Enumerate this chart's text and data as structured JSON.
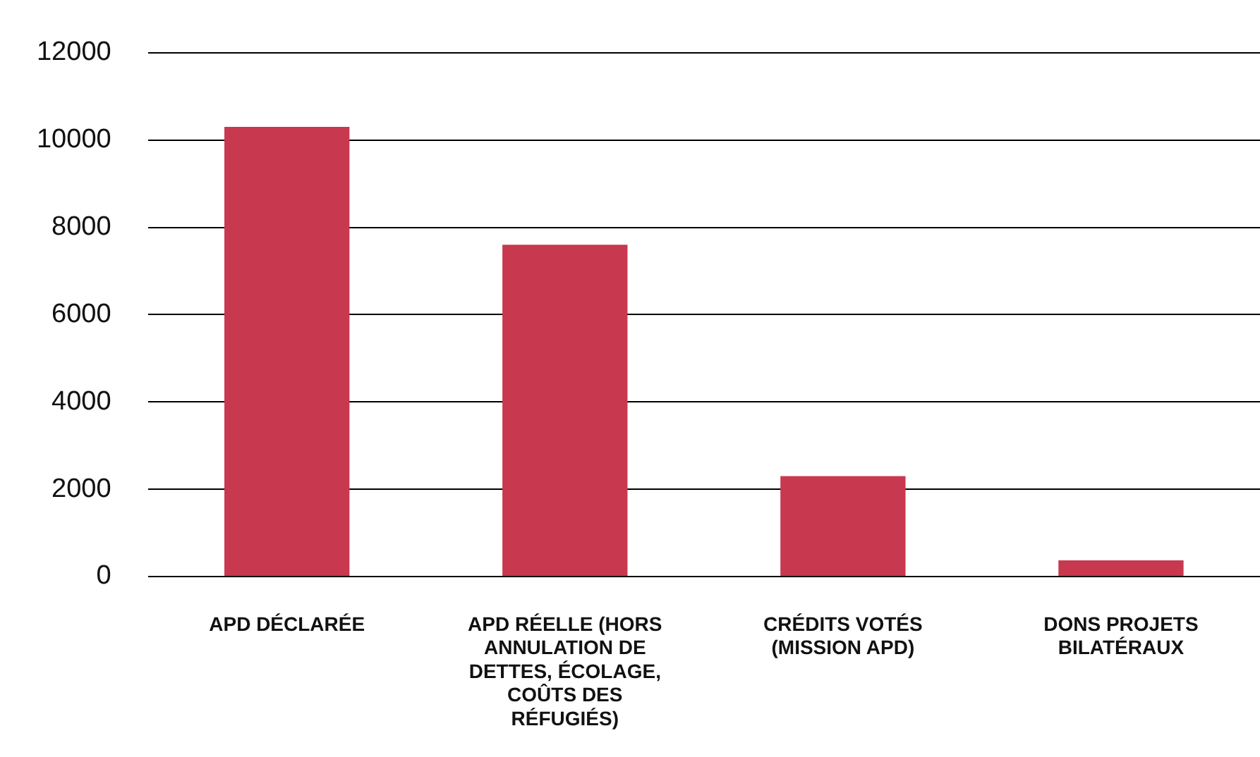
{
  "chart_data": {
    "type": "bar",
    "categories": [
      "APD DÉCLARÉE",
      "APD RÉELLE (HORS ANNULATION DE DETTES, ÉCOLAGE, COÛTS DES RÉFUGIÉS)",
      "CRÉDITS VOTÉS (MISSION APD)",
      "DONS PROJETS BILATÉRAUX"
    ],
    "values": [
      10300,
      7600,
      2300,
      370
    ],
    "color": "#c8384f",
    "ylim": [
      0,
      12000
    ],
    "yticks": [
      0,
      2000,
      4000,
      6000,
      8000,
      10000,
      12000
    ],
    "grid": "y",
    "legend": false
  }
}
